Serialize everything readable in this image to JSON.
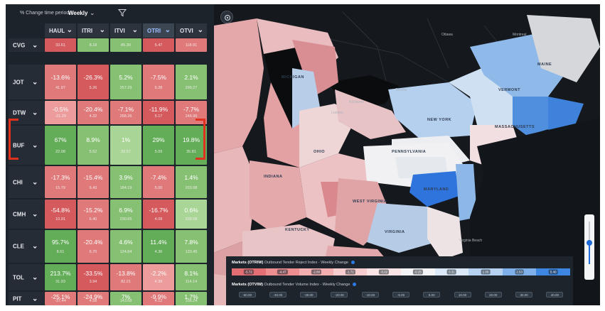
{
  "toolbar": {
    "period_label": "% Change time period",
    "period_value": "Weekly",
    "period_caret": "⌄",
    "filter_icon": "filter-icon"
  },
  "columns": [
    {
      "label": "HAUL",
      "caret": "⌄",
      "active": false
    },
    {
      "label": "ITRI",
      "caret": "⌄",
      "active": false
    },
    {
      "label": "ITVI",
      "caret": "⌄",
      "active": false
    },
    {
      "label": "OTRI",
      "caret": "⌄",
      "active": true
    },
    {
      "label": "OTVI",
      "caret": "⌄",
      "active": false
    }
  ],
  "rows": [
    {
      "market": "CVG",
      "caret": "⌄",
      "cells": [
        {
          "pct": "",
          "val": "33.61",
          "tone": "red1"
        },
        {
          "pct": "",
          "val": "8.18",
          "tone": "green2"
        },
        {
          "pct": "",
          "val": "85.30",
          "tone": "green2"
        },
        {
          "pct": "",
          "val": "5.47",
          "tone": "red1"
        },
        {
          "pct": "",
          "val": "118.91",
          "tone": "red2"
        }
      ]
    },
    {
      "market": "JOT",
      "caret": "⌄",
      "cells": [
        {
          "pct": "-13.6%",
          "val": "41.97",
          "tone": "red2"
        },
        {
          "pct": "-26.3%",
          "val": "5.26",
          "tone": "red1"
        },
        {
          "pct": "5.2%",
          "val": "257.29",
          "tone": "green2"
        },
        {
          "pct": "-7.5%",
          "val": "5.28",
          "tone": "red2"
        },
        {
          "pct": "2.1%",
          "val": "299.27",
          "tone": "green2"
        }
      ]
    },
    {
      "market": "DTW",
      "caret": "⌄",
      "cells": [
        {
          "pct": "-0.5%",
          "val": "-21.29",
          "tone": "red3"
        },
        {
          "pct": "-20.4%",
          "val": "4.32",
          "tone": "red2"
        },
        {
          "pct": "-7.1%",
          "val": "268.26",
          "tone": "red2"
        },
        {
          "pct": "-11.9%",
          "val": "5.17",
          "tone": "red1"
        },
        {
          "pct": "-7.7%",
          "val": "246.96",
          "tone": "red2"
        }
      ]
    },
    {
      "market": "BUF",
      "caret": "⌄",
      "cells": [
        {
          "pct": "67%",
          "val": "22.08",
          "tone": "green1"
        },
        {
          "pct": "8.9%",
          "val": "5.52",
          "tone": "green2"
        },
        {
          "pct": "1%",
          "val": "33.57",
          "tone": "green3"
        },
        {
          "pct": "29%",
          "val": "5.09",
          "tone": "green1"
        },
        {
          "pct": "19.8%",
          "val": "35.81",
          "tone": "green1"
        }
      ]
    },
    {
      "market": "CHI",
      "caret": "⌄",
      "cells": [
        {
          "pct": "-17.3%",
          "val": "15.79",
          "tone": "red2"
        },
        {
          "pct": "-15.4%",
          "val": "6.43",
          "tone": "red2"
        },
        {
          "pct": "3.9%",
          "val": "184.19",
          "tone": "green2"
        },
        {
          "pct": "-7.4%",
          "val": "5.00",
          "tone": "red2"
        },
        {
          "pct": "1.4%",
          "val": "203.98",
          "tone": "green2"
        }
      ]
    },
    {
      "market": "CMH",
      "caret": "⌄",
      "cells": [
        {
          "pct": "-54.8%",
          "val": "10.91",
          "tone": "red1"
        },
        {
          "pct": "-15.2%",
          "val": "6.40",
          "tone": "red2"
        },
        {
          "pct": "6.9%",
          "val": "230.65",
          "tone": "green2"
        },
        {
          "pct": "-16.7%",
          "val": "4.08",
          "tone": "red1"
        },
        {
          "pct": "0.6%",
          "val": "238.58",
          "tone": "green3"
        }
      ]
    },
    {
      "market": "CLE",
      "caret": "⌄",
      "cells": [
        {
          "pct": "95.7%",
          "val": "8.61",
          "tone": "green1"
        },
        {
          "pct": "-20.4%",
          "val": "6.70",
          "tone": "red2"
        },
        {
          "pct": "4.6%",
          "val": "124.84",
          "tone": "green2"
        },
        {
          "pct": "11.4%",
          "val": "4.36",
          "tone": "green1"
        },
        {
          "pct": "7.8%",
          "val": "133.45",
          "tone": "green2"
        }
      ]
    },
    {
      "market": "TOL",
      "caret": "⌄",
      "cells": [
        {
          "pct": "213.7%",
          "val": "31.93",
          "tone": "green1"
        },
        {
          "pct": "-33.5%",
          "val": "3.94",
          "tone": "red1"
        },
        {
          "pct": "-13.8%",
          "val": "82.21",
          "tone": "red2"
        },
        {
          "pct": "-2.2%",
          "val": "4.38",
          "tone": "red3"
        },
        {
          "pct": "8.1%",
          "val": "114.14",
          "tone": "green2"
        }
      ]
    },
    {
      "market": "PIT",
      "caret": "⌄",
      "cells": [
        {
          "pct": "-25.1%",
          "val": "-37.44",
          "tone": "red2"
        },
        {
          "pct": "-24.9%",
          "val": "4.58",
          "tone": "red2"
        },
        {
          "pct": "7%",
          "val": "143.68",
          "tone": "green2"
        },
        {
          "pct": "-9.9%",
          "val": "4.12",
          "tone": "red2"
        },
        {
          "pct": "1.7%",
          "val": "106.24",
          "tone": "green2"
        }
      ]
    }
  ],
  "map": {
    "settings_icon": "settings-icon",
    "state_labels": [
      "MICHIGAN",
      "NEW YORK",
      "VERMONT",
      "MAINE",
      "MASSACHUSETTS",
      "PENNSYLVANIA",
      "OHIO",
      "INDIANA",
      "WEST VIRGINIA",
      "KENTUCKY",
      "VIRGINIA",
      "MARYLAND"
    ],
    "city_labels": [
      "Kitchener",
      "London",
      "Toronto",
      "Ottawa",
      "Montreal",
      "Virginia Beach"
    ],
    "zoom_level": 0.5
  },
  "legend": {
    "otri_title_bold": "Markets (OTRIW)",
    "otri_title": "Outbound Tender Reject Index - Weekly Change",
    "otri_values": [
      "-5.72",
      "-4.47",
      "-2.80",
      "-1.72",
      "-0.62",
      "-0.25",
      "0.31",
      "1.00",
      "2.53",
      "5.40"
    ],
    "otri_colors": [
      "#e26f74",
      "#ec8d90",
      "#f3aeb0",
      "#f8cdcf",
      "#fbe4e5",
      "#f4f4f6",
      "#dbe8f7",
      "#b7d2f1",
      "#7fb0ea",
      "#3d87e2"
    ],
    "otvi_title_bold": "Markets (OTVIW)",
    "otvi_title": "Outbound Tender Volume Index - Weekly Change",
    "otvi_values": [
      "-50.00",
      "-40.00",
      "-30.00",
      "-20.00",
      "-10.00",
      "-5.00",
      "5.00",
      "10.00",
      "20.00",
      "30.00",
      "40.00"
    ]
  }
}
